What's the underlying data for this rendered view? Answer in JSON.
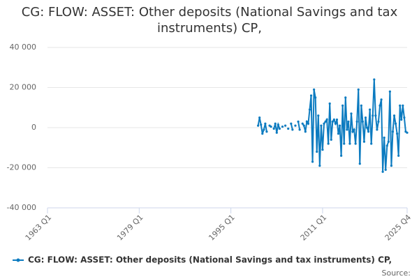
{
  "chart_data": {
    "type": "line",
    "title": "CG: FLOW: ASSET: Other deposits (National Savings and tax instruments) CP,",
    "source": "Source:",
    "categories": [
      "1963 Q1",
      null,
      null,
      null,
      null,
      null,
      null,
      null,
      null,
      null,
      null,
      null,
      null,
      null,
      null,
      null,
      null,
      null,
      null,
      null,
      null,
      null,
      null,
      null,
      null,
      null,
      null,
      null,
      null,
      null,
      null,
      null,
      null,
      null,
      null,
      null,
      null,
      null,
      null,
      null,
      null,
      null,
      null,
      null,
      null,
      null,
      null,
      null,
      null,
      null,
      null,
      null,
      null,
      null,
      null,
      null,
      null,
      null,
      null,
      null,
      null,
      null,
      null,
      null,
      "1979 Q1",
      null,
      null,
      null,
      null,
      null,
      null,
      null,
      null,
      null,
      null,
      null,
      null,
      null,
      null,
      null,
      null,
      null,
      null,
      null,
      null,
      null,
      null,
      null,
      null,
      null,
      null,
      null,
      null,
      null,
      null,
      null,
      null,
      null,
      null,
      null,
      null,
      null,
      null,
      null,
      null,
      null,
      null,
      null,
      null,
      null,
      null,
      null,
      null,
      null,
      null,
      null,
      null,
      null,
      null,
      null,
      null,
      null,
      null,
      null,
      null,
      null,
      null,
      null,
      "1995 Q1",
      null,
      null,
      null,
      null,
      null,
      null,
      null,
      null,
      null,
      null,
      null,
      null,
      null,
      null,
      null,
      null,
      null,
      null,
      null,
      null,
      null,
      null,
      null,
      null,
      null,
      null,
      null,
      null,
      null,
      null,
      null,
      null,
      null,
      null,
      null,
      null,
      null,
      null,
      null,
      null,
      null,
      null,
      null,
      null,
      null,
      null,
      null,
      null,
      null,
      null,
      null,
      null,
      null,
      null,
      null,
      null,
      null,
      null,
      null,
      null,
      null,
      null,
      null,
      "2011 Q1",
      null,
      null,
      null,
      null,
      null,
      null,
      null,
      null,
      null,
      null,
      null,
      null,
      null,
      null,
      null,
      null,
      null,
      null,
      null,
      null,
      null,
      null,
      null,
      null,
      null,
      null,
      null,
      null,
      null,
      null,
      null,
      null,
      null,
      null,
      null,
      null,
      null,
      null,
      null,
      null,
      null,
      null,
      null,
      null,
      null,
      null,
      null,
      null,
      null,
      null,
      null,
      null,
      null,
      null,
      null,
      null,
      null,
      null,
      "2025 Q4"
    ],
    "series": [
      {
        "name": "CG: FLOW: ASSET: Other deposits (National Savings and tax instruments) CP,",
        "color": "#0c7bc0",
        "values": [
          null,
          null,
          null,
          null,
          null,
          null,
          null,
          null,
          null,
          null,
          null,
          null,
          null,
          null,
          null,
          null,
          null,
          null,
          null,
          null,
          null,
          null,
          null,
          null,
          null,
          null,
          null,
          null,
          null,
          null,
          null,
          null,
          null,
          null,
          null,
          null,
          null,
          null,
          null,
          null,
          null,
          null,
          null,
          null,
          null,
          null,
          null,
          null,
          null,
          null,
          null,
          null,
          null,
          null,
          null,
          null,
          null,
          null,
          null,
          null,
          null,
          null,
          null,
          null,
          null,
          null,
          null,
          null,
          null,
          null,
          null,
          null,
          null,
          null,
          null,
          null,
          null,
          null,
          null,
          null,
          null,
          null,
          null,
          null,
          null,
          null,
          null,
          null,
          null,
          null,
          null,
          null,
          null,
          null,
          null,
          null,
          null,
          null,
          null,
          null,
          null,
          null,
          null,
          null,
          null,
          null,
          null,
          null,
          null,
          null,
          null,
          null,
          null,
          null,
          null,
          null,
          null,
          null,
          null,
          null,
          null,
          null,
          null,
          null,
          null,
          null,
          null,
          null,
          null,
          null,
          null,
          null,
          null,
          null,
          null,
          null,
          null,
          null,
          null,
          null,
          null,
          null,
          null,
          null,
          null,
          null,
          null,
          1000,
          5000,
          1500,
          -3000,
          -1000,
          2000,
          -2000,
          null,
          1000,
          500,
          null,
          -500,
          2000,
          -2500,
          1500,
          -500,
          null,
          500,
          null,
          1000,
          null,
          -500,
          null,
          2000,
          -1000,
          null,
          1000,
          null,
          3000,
          -1000,
          null,
          2000,
          1000,
          -2000,
          3000,
          2000,
          9000,
          16000,
          -17000,
          19000,
          15000,
          -12000,
          6000,
          -19000,
          1000,
          -11000,
          2000,
          3000,
          4000,
          -8000,
          12000,
          -6000,
          3000,
          4000,
          2000,
          4000,
          -3000,
          1000,
          -14000,
          11000,
          -8000,
          15000,
          -1000,
          3000,
          -8000,
          7000,
          -2000,
          -1000,
          -8000,
          3000,
          19000,
          -18000,
          11000,
          3000,
          -7000,
          5000,
          0,
          -2000,
          9000,
          -8000,
          6000,
          24000,
          6000,
          -1000,
          3000,
          11000,
          14000,
          -22000,
          -5000,
          -21000,
          -9000,
          -7000,
          18000,
          -19000,
          -2000,
          6000,
          2000,
          -3000,
          -14000,
          11000,
          4000,
          11000,
          5000,
          -2000,
          -2500
        ]
      }
    ],
    "ylim": [
      -40000,
      40000
    ],
    "yticks": [
      {
        "value": -40000,
        "label": "-40 000"
      },
      {
        "value": -20000,
        "label": "-20 000"
      },
      0,
      {
        "value": 20000,
        "label": "20 000"
      },
      {
        "value": 40000,
        "label": "40 000"
      }
    ],
    "grid": true
  }
}
